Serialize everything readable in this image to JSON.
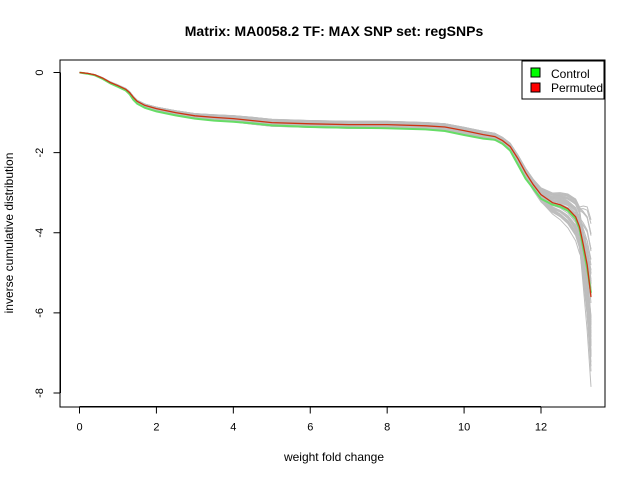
{
  "chart_data": {
    "type": "line",
    "title": "Matrix: MA0058.2 TF: MAX SNP set: regSNPs",
    "xlabel": "weight fold change",
    "ylabel": "inverse cumulative distribution",
    "xlim": [
      0,
      13.3
    ],
    "ylim": [
      -8,
      0
    ],
    "x_ticks": [
      "0",
      "2",
      "4",
      "6",
      "8",
      "10",
      "12"
    ],
    "y_ticks": [
      "0",
      "-2",
      "-4",
      "-6",
      "-8"
    ],
    "legend": {
      "position": "top-right",
      "entries": [
        "Control",
        "Permuted"
      ]
    },
    "colors": {
      "Control": "#00ff00",
      "Permuted": "#ff0000",
      "Control_line": "#66dd66",
      "Permuted_line": "#cc3311",
      "background_curves": "#bdbdbd"
    },
    "background_curve_count": 60,
    "series": [
      {
        "name": "Permuted",
        "x": [
          0,
          0.2,
          0.4,
          0.6,
          0.8,
          1.0,
          1.2,
          1.3,
          1.4,
          1.5,
          1.7,
          2.0,
          2.5,
          3.0,
          3.5,
          4.0,
          4.5,
          5.0,
          6.0,
          7.0,
          8.0,
          9.0,
          9.5,
          10.0,
          10.5,
          10.8,
          11.0,
          11.2,
          11.4,
          11.6,
          11.8,
          12.0,
          12.3,
          12.5,
          12.7,
          12.9,
          13.0,
          13.1,
          13.2,
          13.3
        ],
        "values": [
          0,
          -0.02,
          -0.06,
          -0.14,
          -0.25,
          -0.33,
          -0.42,
          -0.5,
          -0.62,
          -0.72,
          -0.82,
          -0.9,
          -1.0,
          -1.08,
          -1.12,
          -1.15,
          -1.2,
          -1.25,
          -1.28,
          -1.3,
          -1.3,
          -1.33,
          -1.36,
          -1.45,
          -1.55,
          -1.6,
          -1.7,
          -1.85,
          -2.15,
          -2.5,
          -2.8,
          -3.05,
          -3.25,
          -3.3,
          -3.4,
          -3.6,
          -3.85,
          -4.3,
          -4.8,
          -5.6
        ]
      },
      {
        "name": "Control",
        "x": [
          0,
          0.2,
          0.4,
          0.6,
          0.8,
          1.0,
          1.2,
          1.3,
          1.4,
          1.5,
          1.7,
          2.0,
          2.5,
          3.0,
          3.5,
          4.0,
          4.5,
          5.0,
          6.0,
          7.0,
          8.0,
          9.0,
          9.5,
          10.0,
          10.5,
          10.8,
          11.0,
          11.2,
          11.4,
          11.6,
          11.8,
          12.0,
          12.3,
          12.5,
          12.7,
          12.9,
          13.0,
          13.1,
          13.2,
          13.3
        ],
        "values": [
          0,
          -0.03,
          -0.07,
          -0.16,
          -0.27,
          -0.36,
          -0.45,
          -0.54,
          -0.68,
          -0.78,
          -0.88,
          -0.97,
          -1.07,
          -1.15,
          -1.2,
          -1.23,
          -1.27,
          -1.32,
          -1.36,
          -1.38,
          -1.39,
          -1.42,
          -1.46,
          -1.56,
          -1.65,
          -1.68,
          -1.78,
          -1.95,
          -2.3,
          -2.65,
          -2.9,
          -3.15,
          -3.3,
          -3.35,
          -3.45,
          -3.65,
          -3.9,
          -4.4,
          -4.9,
          -5.5
        ]
      }
    ]
  }
}
